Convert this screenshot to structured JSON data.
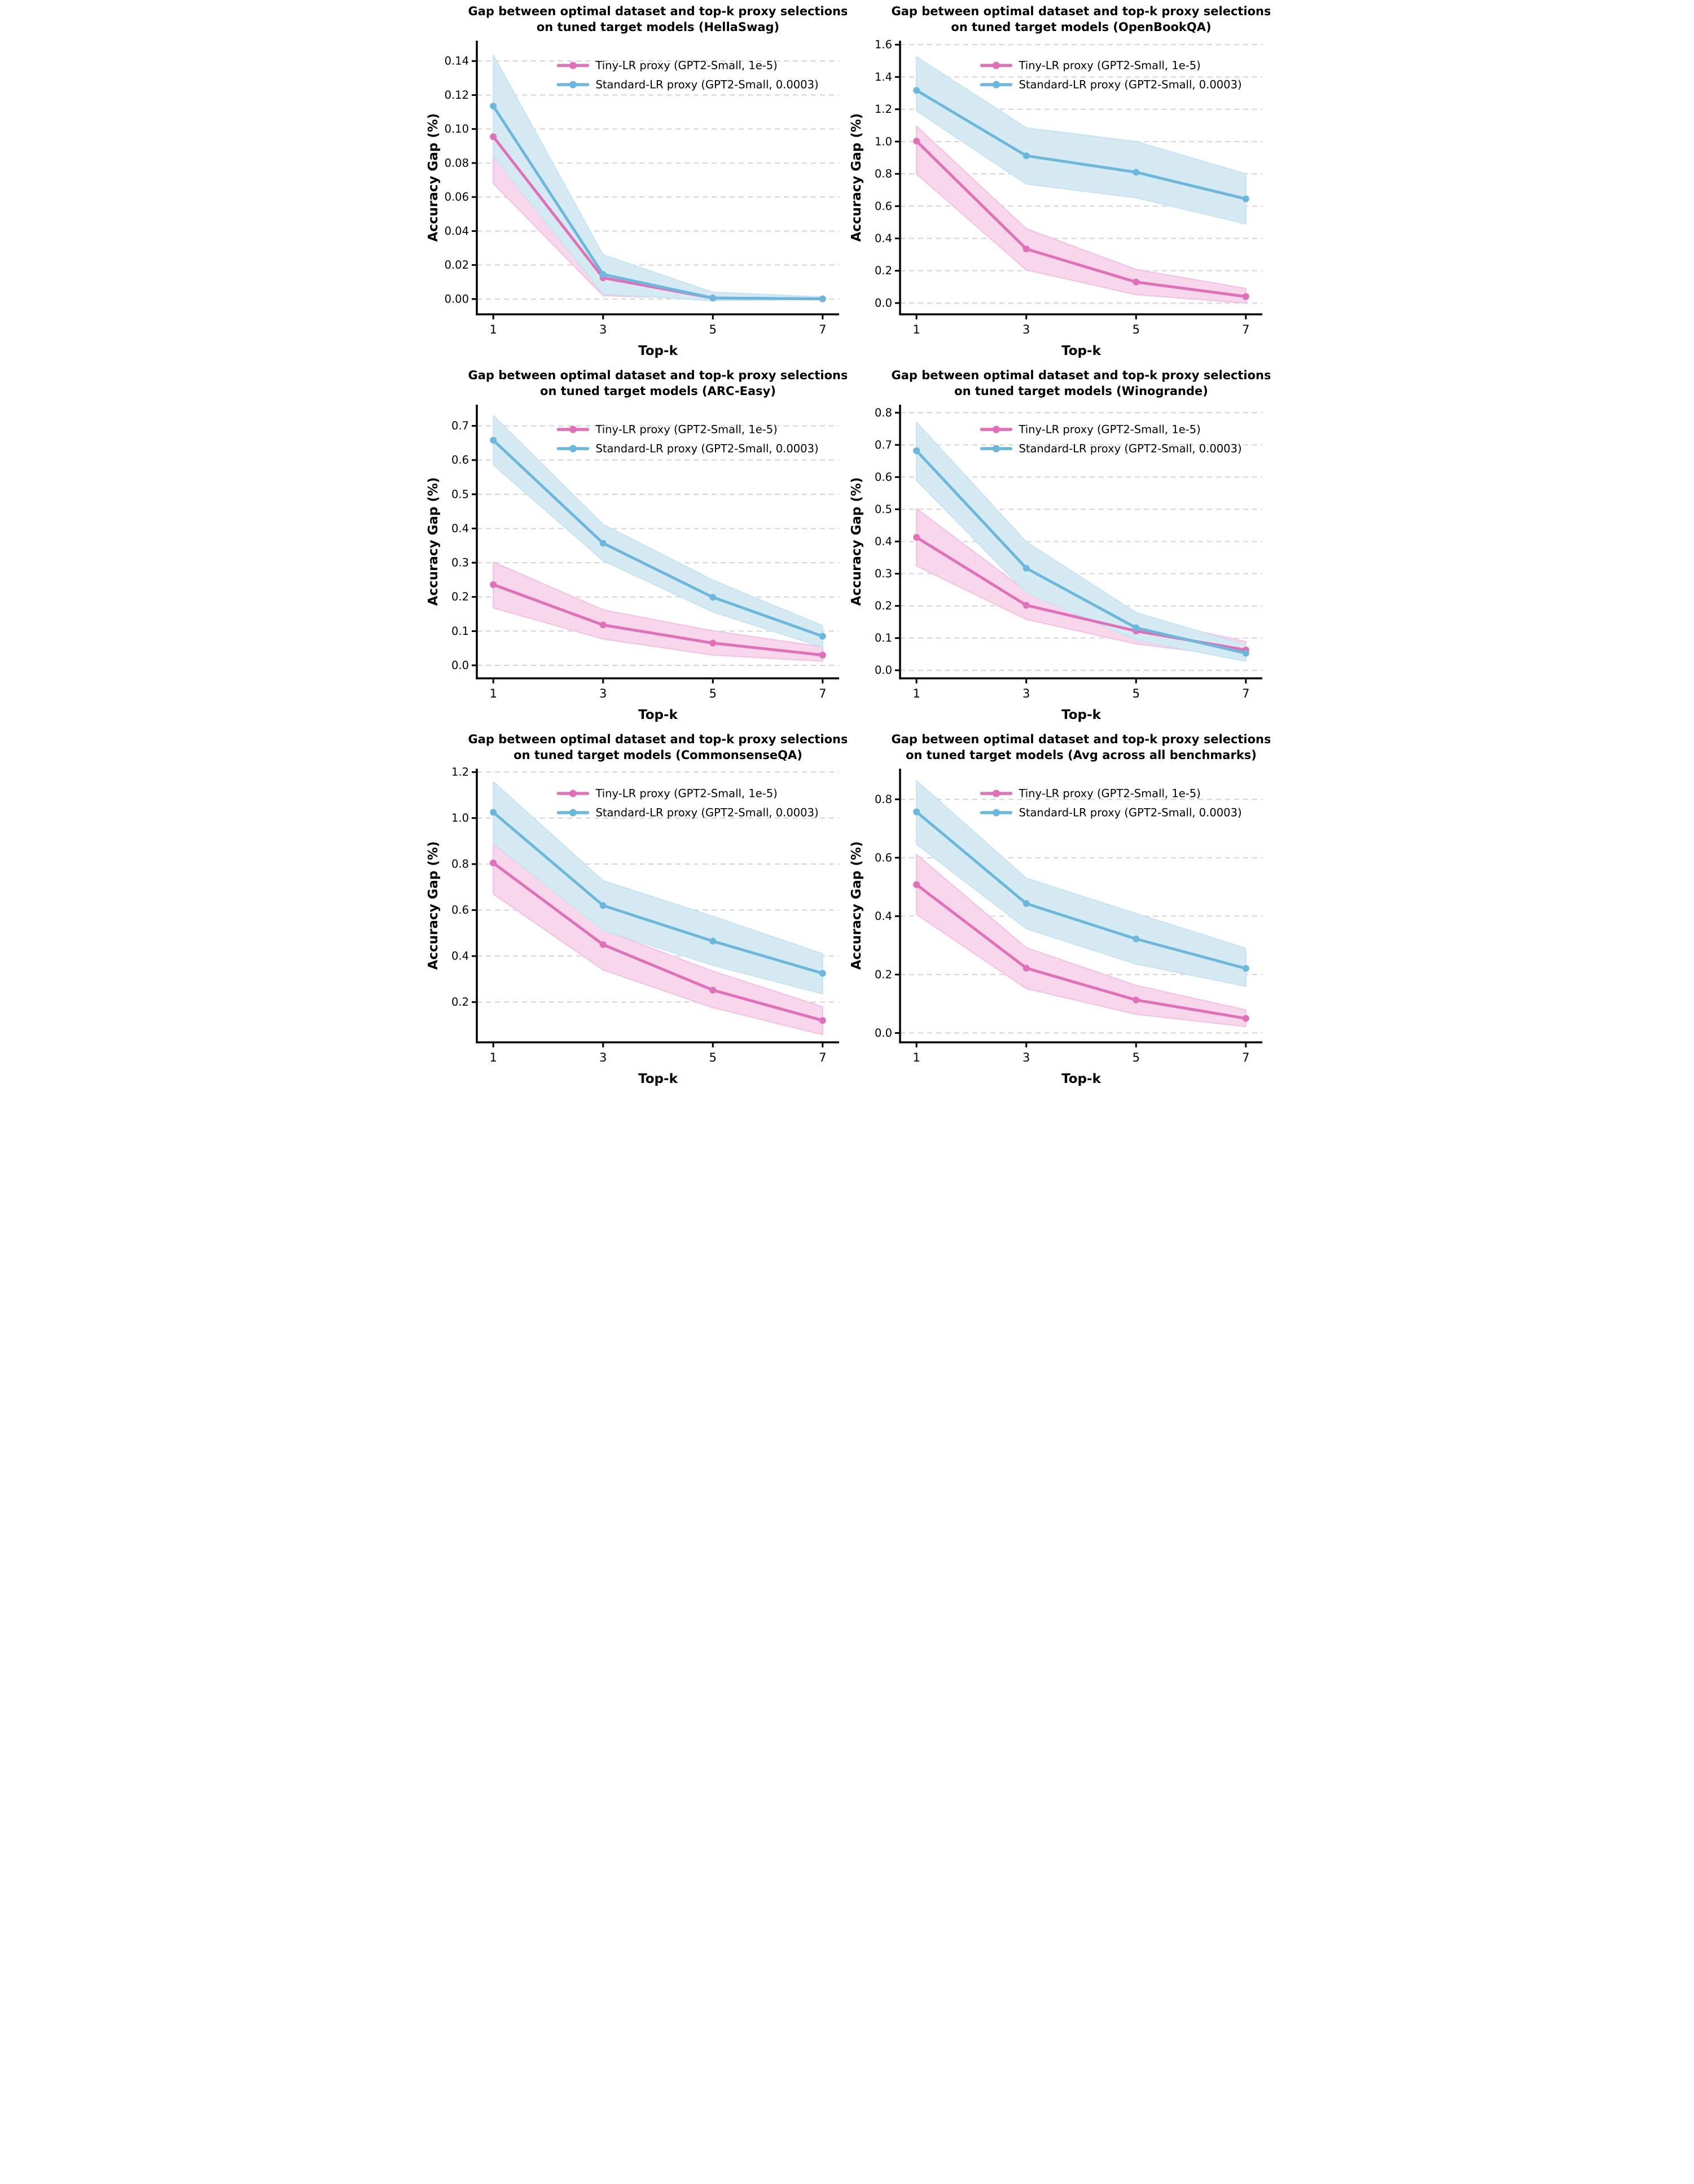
{
  "theme": {
    "background": "#ffffff",
    "axis_color": "#000000",
    "grid_color": "#d4d4d4",
    "text_color": "#000000",
    "tiny_lr_color": "#e070b8",
    "tiny_lr_band_color": "#f8d7ec",
    "standard_lr_color": "#6eb7dc",
    "standard_lr_band_color": "#d6eaf4"
  },
  "chart_data": [
    {
      "type": "line",
      "dataset": "HellaSwag",
      "title": [
        "Gap between optimal dataset and top-k proxy selections",
        "on tuned target models (HellaSwag)"
      ],
      "xlabel": "Top-k",
      "ylabel": "Accuracy Gap (%)",
      "x": [
        1,
        3,
        5,
        7
      ],
      "xticks": [
        1,
        3,
        5,
        7
      ],
      "xlim": [
        0.7,
        7.3
      ],
      "ylim": [
        -0.009,
        0.152
      ],
      "yticks": [
        0.0,
        0.02,
        0.04,
        0.06,
        0.08,
        0.1,
        0.12,
        0.14
      ],
      "ydecimals": 2,
      "grid": "horizontal-dashed",
      "legend_position": "upper-center",
      "series": [
        {
          "name": "Tiny-LR proxy (GPT2-Small, 1e-5)",
          "color": "#e070b8",
          "band_color": "#f8d7ec",
          "band_edge": "#f3c0e2",
          "values": [
            0.0955,
            0.0125,
            0.0006,
            0.0001
          ],
          "band_lower": [
            0.068,
            0.002,
            0.0,
            0.0
          ],
          "band_upper": [
            0.123,
            0.023,
            0.004,
            0.0012
          ]
        },
        {
          "name": "Standard-LR proxy (GPT2-Small, 0.0003)",
          "color": "#6eb7dc",
          "band_color": "#d6eaf4",
          "band_edge": "#c6e3f2",
          "values": [
            0.1135,
            0.0145,
            0.0006,
            0.0001
          ],
          "band_lower": [
            0.084,
            0.003,
            -0.001,
            0.0
          ],
          "band_upper": [
            0.1435,
            0.026,
            0.004,
            0.0012
          ]
        }
      ]
    },
    {
      "type": "line",
      "dataset": "OpenBookQA",
      "title": [
        "Gap between optimal dataset and top-k proxy selections",
        "on tuned target models (OpenBookQA)"
      ],
      "xlabel": "Top-k",
      "ylabel": "Accuracy Gap (%)",
      "x": [
        1,
        3,
        5,
        7
      ],
      "xticks": [
        1,
        3,
        5,
        7
      ],
      "xlim": [
        0.7,
        7.3
      ],
      "ylim": [
        -0.07,
        1.625
      ],
      "yticks": [
        0.0,
        0.2,
        0.4,
        0.6,
        0.8,
        1.0,
        1.2,
        1.4,
        1.6
      ],
      "ydecimals": 1,
      "grid": "horizontal-dashed",
      "legend_position": "upper-center",
      "series": [
        {
          "name": "Tiny-LR proxy (GPT2-Small, 1e-5)",
          "color": "#e070b8",
          "band_color": "#f8d7ec",
          "band_edge": "#f3c0e2",
          "values": [
            1.003,
            0.335,
            0.13,
            0.04
          ],
          "band_lower": [
            0.8,
            0.205,
            0.052,
            0.0
          ],
          "band_upper": [
            1.095,
            0.46,
            0.208,
            0.09
          ]
        },
        {
          "name": "Standard-LR proxy (GPT2-Small, 0.0003)",
          "color": "#6eb7dc",
          "band_color": "#d6eaf4",
          "band_edge": "#c6e3f2",
          "values": [
            1.317,
            0.912,
            0.81,
            0.645
          ],
          "band_lower": [
            1.19,
            0.737,
            0.652,
            0.49
          ],
          "band_upper": [
            1.525,
            1.085,
            1.0,
            0.8
          ]
        }
      ]
    },
    {
      "type": "line",
      "dataset": "ARC-Easy",
      "title": [
        "Gap between optimal dataset and top-k proxy selections",
        "on tuned target models (ARC-Easy)"
      ],
      "xlabel": "Top-k",
      "ylabel": "Accuracy Gap (%)",
      "x": [
        1,
        3,
        5,
        7
      ],
      "xticks": [
        1,
        3,
        5,
        7
      ],
      "xlim": [
        0.7,
        7.3
      ],
      "ylim": [
        -0.038,
        0.762
      ],
      "yticks": [
        0.0,
        0.1,
        0.2,
        0.3,
        0.4,
        0.5,
        0.6,
        0.7
      ],
      "ydecimals": 1,
      "grid": "horizontal-dashed",
      "legend_position": "upper-center",
      "series": [
        {
          "name": "Tiny-LR proxy (GPT2-Small, 1e-5)",
          "color": "#e070b8",
          "band_color": "#f8d7ec",
          "band_edge": "#f3c0e2",
          "values": [
            0.236,
            0.118,
            0.065,
            0.03
          ],
          "band_lower": [
            0.168,
            0.077,
            0.03,
            0.012
          ],
          "band_upper": [
            0.302,
            0.162,
            0.101,
            0.054
          ]
        },
        {
          "name": "Standard-LR proxy (GPT2-Small, 0.0003)",
          "color": "#6eb7dc",
          "band_color": "#d6eaf4",
          "band_edge": "#c6e3f2",
          "values": [
            0.658,
            0.357,
            0.199,
            0.085
          ],
          "band_lower": [
            0.586,
            0.306,
            0.156,
            0.053
          ],
          "band_upper": [
            0.73,
            0.412,
            0.249,
            0.116
          ]
        }
      ]
    },
    {
      "type": "line",
      "dataset": "Winogrande",
      "title": [
        "Gap between optimal dataset and top-k proxy selections",
        "on tuned target models (Winogrande)"
      ],
      "xlabel": "Top-k",
      "ylabel": "Accuracy Gap (%)",
      "x": [
        1,
        3,
        5,
        7
      ],
      "xticks": [
        1,
        3,
        5,
        7
      ],
      "xlim": [
        0.7,
        7.3
      ],
      "ylim": [
        -0.025,
        0.825
      ],
      "yticks": [
        0.0,
        0.1,
        0.2,
        0.3,
        0.4,
        0.5,
        0.6,
        0.7,
        0.8
      ],
      "ydecimals": 1,
      "grid": "horizontal-dashed",
      "legend_position": "upper-center",
      "series": [
        {
          "name": "Tiny-LR proxy (GPT2-Small, 1e-5)",
          "color": "#e070b8",
          "band_color": "#f8d7ec",
          "band_edge": "#f3c0e2",
          "values": [
            0.413,
            0.202,
            0.122,
            0.063
          ],
          "band_lower": [
            0.324,
            0.158,
            0.082,
            0.04
          ],
          "band_upper": [
            0.502,
            0.246,
            0.164,
            0.089
          ]
        },
        {
          "name": "Standard-LR proxy (GPT2-Small, 0.0003)",
          "color": "#6eb7dc",
          "band_color": "#d6eaf4",
          "band_edge": "#c6e3f2",
          "values": [
            0.682,
            0.317,
            0.132,
            0.053
          ],
          "band_lower": [
            0.59,
            0.241,
            0.094,
            0.028
          ],
          "band_upper": [
            0.77,
            0.399,
            0.179,
            0.079
          ]
        }
      ]
    },
    {
      "type": "line",
      "dataset": "CommonsenseQA",
      "title": [
        "Gap between optimal dataset and top-k proxy selections",
        "on tuned target models (CommonsenseQA)"
      ],
      "xlabel": "Top-k",
      "ylabel": "Accuracy Gap (%)",
      "x": [
        1,
        3,
        5,
        7
      ],
      "xticks": [
        1,
        3,
        5,
        7
      ],
      "xlim": [
        0.7,
        7.3
      ],
      "ylim": [
        0.025,
        1.215
      ],
      "yticks": [
        0.2,
        0.4,
        0.6,
        0.8,
        1.0,
        1.2
      ],
      "ydecimals": 1,
      "grid": "horizontal-dashed",
      "legend_position": "upper-center",
      "series": [
        {
          "name": "Tiny-LR proxy (GPT2-Small, 1e-5)",
          "color": "#e070b8",
          "band_color": "#f8d7ec",
          "band_edge": "#f3c0e2",
          "values": [
            0.805,
            0.45,
            0.252,
            0.12
          ],
          "band_lower": [
            0.67,
            0.34,
            0.176,
            0.058
          ],
          "band_upper": [
            0.888,
            0.514,
            0.334,
            0.18
          ]
        },
        {
          "name": "Standard-LR proxy (GPT2-Small, 0.0003)",
          "color": "#6eb7dc",
          "band_color": "#d6eaf4",
          "band_edge": "#c6e3f2",
          "values": [
            1.025,
            0.62,
            0.465,
            0.325
          ],
          "band_lower": [
            0.89,
            0.512,
            0.36,
            0.236
          ],
          "band_upper": [
            1.158,
            0.728,
            0.573,
            0.41
          ]
        }
      ]
    },
    {
      "type": "line",
      "dataset": "Avg across all benchmarks",
      "title": [
        "Gap between optimal dataset and top-k proxy selections",
        "on tuned target models (Avg across all benchmarks)"
      ],
      "xlabel": "Top-k",
      "ylabel": "Accuracy Gap (%)",
      "x": [
        1,
        3,
        5,
        7
      ],
      "xticks": [
        1,
        3,
        5,
        7
      ],
      "xlim": [
        0.7,
        7.3
      ],
      "ylim": [
        -0.032,
        0.905
      ],
      "yticks": [
        0.0,
        0.2,
        0.4,
        0.6,
        0.8
      ],
      "ydecimals": 1,
      "grid": "horizontal-dashed",
      "legend_position": "upper-center",
      "series": [
        {
          "name": "Tiny-LR proxy (GPT2-Small, 1e-5)",
          "color": "#e070b8",
          "band_color": "#f8d7ec",
          "band_edge": "#f3c0e2",
          "values": [
            0.508,
            0.222,
            0.113,
            0.05
          ],
          "band_lower": [
            0.406,
            0.152,
            0.064,
            0.022
          ],
          "band_upper": [
            0.611,
            0.292,
            0.163,
            0.079
          ]
        },
        {
          "name": "Standard-LR proxy (GPT2-Small, 0.0003)",
          "color": "#6eb7dc",
          "band_color": "#d6eaf4",
          "band_edge": "#c6e3f2",
          "values": [
            0.757,
            0.443,
            0.322,
            0.221
          ],
          "band_lower": [
            0.646,
            0.357,
            0.236,
            0.16
          ],
          "band_upper": [
            0.864,
            0.53,
            0.409,
            0.29
          ]
        }
      ]
    }
  ]
}
